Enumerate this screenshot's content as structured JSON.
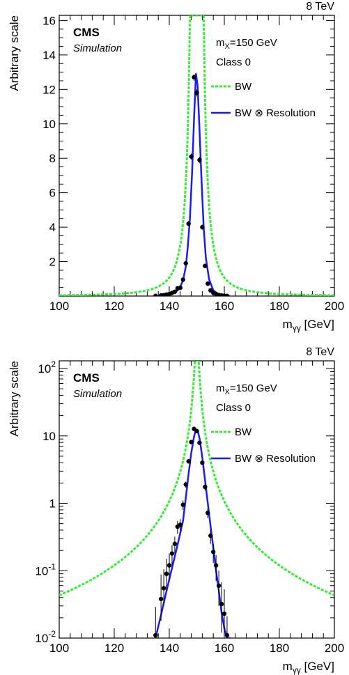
{
  "chart_data": [
    {
      "type": "line",
      "scale": "linear",
      "energy_label": "8 TeV",
      "experiment": "CMS",
      "sublabel": "Simulation",
      "info_mass": "m<sub>X</sub>=150 GeV",
      "info_mass_parts": {
        "m": "m",
        "sub": "X",
        "rest": "=150 GeV"
      },
      "info_class": "Class 0",
      "xlabel": {
        "main": "m",
        "sub": "γγ",
        "unit": " [GeV]"
      },
      "ylabel": "Arbitrary scale",
      "xlim": [
        100,
        200
      ],
      "ylim": [
        0,
        16.3
      ],
      "xticks": [
        100,
        120,
        140,
        160,
        180,
        200
      ],
      "yticks": [
        2,
        4,
        6,
        8,
        10,
        12,
        14,
        16
      ],
      "legend": [
        {
          "label": "BW",
          "style": "dashed",
          "color": "#33ee33"
        },
        {
          "label": "BW ⊗ Resolution",
          "style": "solid",
          "color": "#1a1aff"
        }
      ],
      "series": [
        {
          "name": "BW",
          "kind": "breit-wigner",
          "peak": 150,
          "gamma": 0.6,
          "peak_height": 300,
          "color": "#33ee33"
        },
        {
          "name": "BW ⊗ Resolution",
          "kind": "curve",
          "color": "#1a1aff",
          "x": [
            135,
            138,
            141,
            143,
            144,
            145,
            146,
            146.7,
            147.5,
            148.3,
            149,
            149.7,
            150.3,
            151,
            151.7,
            152.5,
            153.3,
            154.5,
            156,
            158,
            160,
            162
          ],
          "y": [
            0.012,
            0.04,
            0.13,
            0.32,
            0.55,
            0.9,
            1.7,
            2.8,
            4.5,
            7.2,
            10.3,
            12.9,
            12.2,
            9.6,
            6.8,
            4.0,
            2.2,
            0.95,
            0.33,
            0.1,
            0.03,
            0.006
          ]
        },
        {
          "name": "points",
          "kind": "markers",
          "x": [
            135,
            137,
            138,
            139,
            140,
            141,
            142,
            143,
            144,
            145,
            146,
            147,
            148,
            149,
            150,
            151,
            152,
            153,
            154,
            155,
            156,
            157,
            158,
            159,
            160,
            161
          ],
          "y": [
            0.011,
            0.038,
            0.055,
            0.09,
            0.12,
            0.18,
            0.25,
            0.45,
            0.48,
            0.95,
            1.9,
            4.2,
            8.1,
            12.7,
            11.8,
            7.9,
            4.0,
            1.75,
            0.72,
            0.33,
            0.19,
            0.12,
            0.06,
            0.032,
            0.023,
            0.011
          ],
          "yerr": [
            0.009,
            0.02,
            0.02,
            0.03,
            0.03,
            0.04,
            0.05,
            0.06,
            0.07,
            0.1,
            0.12,
            0.15,
            0.18,
            0.2,
            0.2,
            0.18,
            0.15,
            0.12,
            0.09,
            0.06,
            0.05,
            0.04,
            0.03,
            0.02,
            0.015,
            0.008
          ]
        }
      ]
    },
    {
      "type": "line",
      "scale": "log",
      "energy_label": "8 TeV",
      "experiment": "CMS",
      "sublabel": "Simulation",
      "info_mass_parts": {
        "m": "m",
        "sub": "X",
        "rest": "=150 GeV"
      },
      "info_class": "Class 0",
      "xlabel": {
        "main": "m",
        "sub": "γγ",
        "unit": " [GeV]"
      },
      "ylabel": "Arbitrary scale",
      "xlim": [
        100,
        200
      ],
      "ylim": [
        0.01,
        130
      ],
      "xticks": [
        100,
        120,
        140,
        160,
        180,
        200
      ],
      "yticks": [
        {
          "value": 0.01,
          "base": "10",
          "exp": "-2"
        },
        {
          "value": 0.1,
          "base": "10",
          "exp": "-1"
        },
        {
          "value": 1,
          "base": "1",
          "exp": ""
        },
        {
          "value": 10,
          "base": "10",
          "exp": ""
        },
        {
          "value": 100,
          "base": "10",
          "exp": "2"
        }
      ],
      "legend": [
        {
          "label": "BW",
          "style": "dashed",
          "color": "#33ee33"
        },
        {
          "label": "BW ⊗ Resolution",
          "style": "solid",
          "color": "#1a1aff"
        }
      ],
      "series": [
        {
          "name": "BW",
          "kind": "breit-wigner",
          "peak": 150,
          "gamma": 0.6,
          "peak_height": 300,
          "color": "#33ee33"
        },
        {
          "name": "BW ⊗ Resolution",
          "kind": "curve",
          "color": "#1a1aff",
          "x": [
            135,
            137,
            139,
            141,
            143,
            145,
            146,
            147,
            148,
            149,
            149.7,
            150.3,
            151,
            152,
            153,
            154,
            155,
            156,
            157,
            158,
            159,
            160,
            161,
            162.3
          ],
          "y": [
            0.01,
            0.022,
            0.05,
            0.11,
            0.24,
            0.55,
            1.2,
            2.7,
            5.6,
            9.8,
            12.5,
            12.0,
            9.2,
            4.8,
            2.2,
            1.0,
            0.46,
            0.22,
            0.1,
            0.05,
            0.024,
            0.014,
            0.01,
            0.01
          ]
        },
        {
          "name": "points",
          "kind": "markers",
          "x": [
            135,
            137,
            138,
            139,
            140,
            141,
            142,
            143,
            144,
            145,
            146,
            147,
            148,
            149,
            150,
            151,
            152,
            153,
            154,
            155,
            156,
            157,
            158,
            159,
            160,
            161
          ],
          "y": [
            0.011,
            0.038,
            0.055,
            0.09,
            0.12,
            0.18,
            0.25,
            0.45,
            0.48,
            0.95,
            1.9,
            4.2,
            8.1,
            12.7,
            11.8,
            7.9,
            4.0,
            1.75,
            0.72,
            0.33,
            0.19,
            0.12,
            0.06,
            0.032,
            0.023,
            0.011
          ],
          "yerr_up": [
            0.018,
            0.05,
            0.05,
            0.06,
            0.06,
            0.06,
            0.07,
            0.1,
            0.1,
            0.15,
            0.2,
            0.3,
            0.4,
            0.5,
            0.5,
            0.4,
            0.3,
            0.2,
            0.12,
            0.08,
            0.06,
            0.05,
            0.04,
            0.035,
            0.03,
            0.01
          ],
          "yerr_down": [
            0.006,
            0.02,
            0.025,
            0.04,
            0.05,
            0.06,
            0.07,
            0.1,
            0.1,
            0.15,
            0.2,
            0.3,
            0.4,
            0.5,
            0.5,
            0.4,
            0.3,
            0.2,
            0.12,
            0.08,
            0.06,
            0.05,
            0.03,
            0.02,
            0.013,
            0.006
          ]
        }
      ]
    }
  ]
}
